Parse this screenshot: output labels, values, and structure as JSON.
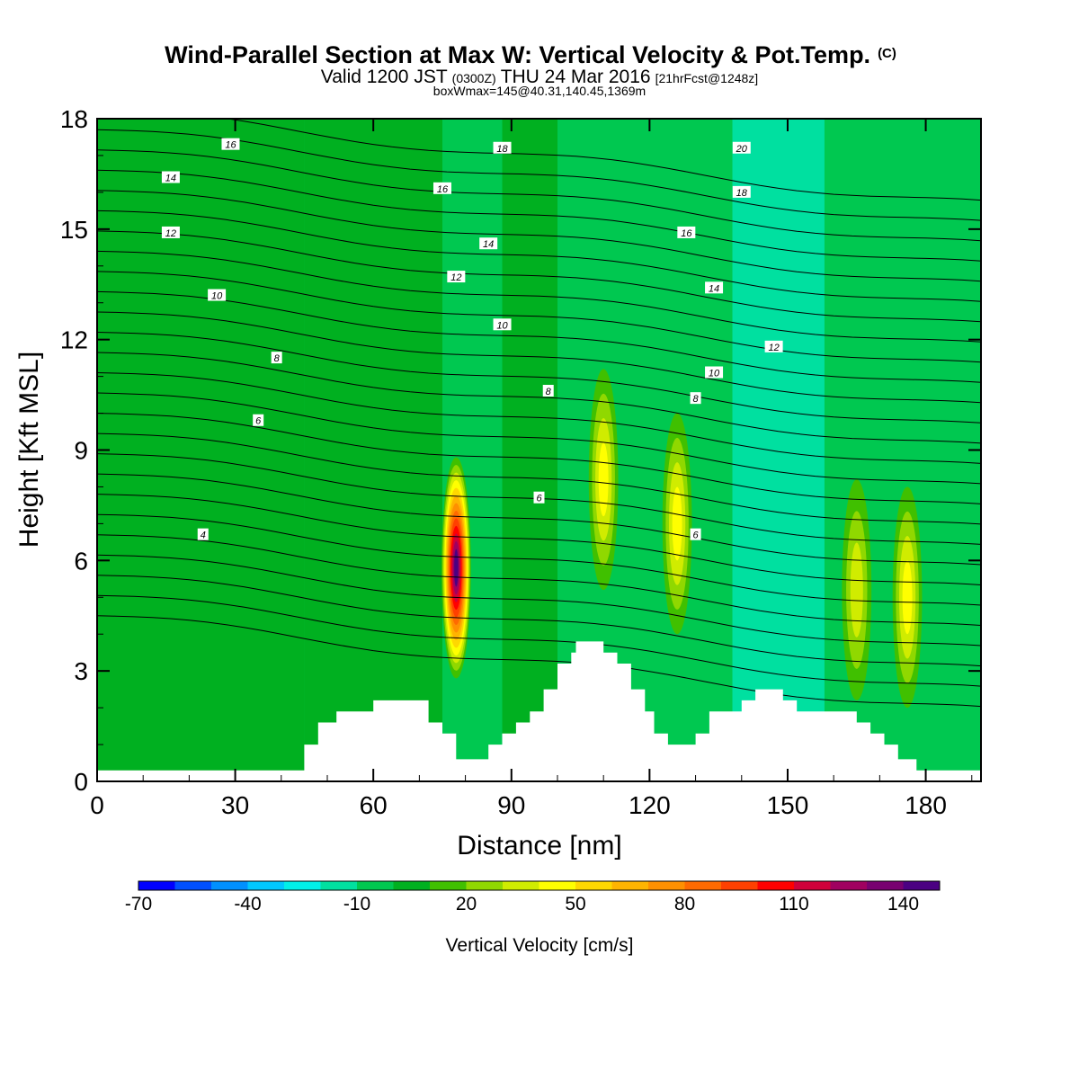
{
  "chart_data": {
    "type": "heatmap",
    "title": "Wind-Parallel Section at Max W: Vertical Velocity & Pot.Temp.",
    "title_mark": "(C)",
    "subtitle": {
      "valid": "Valid 1200 JST",
      "zulu": "(0300Z)",
      "date": "THU 24 Mar 2016",
      "fcst": "[21hrFcst@1248z]"
    },
    "note": "boxWmax=145@40.31,140.45,1369m",
    "xlabel": "Distance [nm]",
    "ylabel": "Height [Kft MSL]",
    "xlim": [
      0,
      192
    ],
    "ylim": [
      0,
      18
    ],
    "xticks": [
      "0",
      "30",
      "60",
      "90",
      "120",
      "150",
      "180"
    ],
    "yticks": [
      "0",
      "3",
      "6",
      "9",
      "12",
      "15",
      "18"
    ],
    "colorbar": {
      "label": "Vertical Velocity [cm/s]",
      "tick_labels": [
        "-70",
        "-40",
        "-10",
        "20",
        "50",
        "80",
        "110",
        "140"
      ],
      "tick_values": [
        -70,
        -40,
        -10,
        20,
        50,
        80,
        110,
        140
      ],
      "min": -70,
      "max": 150,
      "step": 10,
      "colors": [
        "#0000ff",
        "#0050ff",
        "#0090ff",
        "#00c8ff",
        "#00f0e8",
        "#00e0a0",
        "#00c850",
        "#00b020",
        "#40c000",
        "#90d800",
        "#d0ec00",
        "#ffff00",
        "#ffd800",
        "#ffb400",
        "#ff9000",
        "#ff6a00",
        "#ff4000",
        "#ff0000",
        "#d0003a",
        "#a00060",
        "#780070",
        "#4b0082"
      ]
    },
    "updrafts": [
      {
        "x": 78,
        "z": 5.8,
        "w": 145
      },
      {
        "x": 110,
        "z": 8.2,
        "w": 45
      },
      {
        "x": 126,
        "z": 7.0,
        "w": 45
      },
      {
        "x": 165,
        "z": 5.2,
        "w": 35
      },
      {
        "x": 176,
        "z": 5.0,
        "w": 45
      }
    ],
    "terrain": [
      [
        0,
        0.3
      ],
      [
        45,
        0.3
      ],
      [
        45,
        1.0
      ],
      [
        48,
        1.0
      ],
      [
        48,
        1.6
      ],
      [
        52,
        1.6
      ],
      [
        52,
        1.9
      ],
      [
        60,
        1.9
      ],
      [
        60,
        2.2
      ],
      [
        62,
        2.2
      ],
      [
        62,
        2.2
      ],
      [
        72,
        2.2
      ],
      [
        72,
        1.6
      ],
      [
        75,
        1.6
      ],
      [
        75,
        1.3
      ],
      [
        78,
        1.3
      ],
      [
        78,
        0.6
      ],
      [
        85,
        0.6
      ],
      [
        85,
        1.0
      ],
      [
        88,
        1.0
      ],
      [
        88,
        1.3
      ],
      [
        91,
        1.3
      ],
      [
        91,
        1.6
      ],
      [
        94,
        1.6
      ],
      [
        94,
        1.9
      ],
      [
        97,
        1.9
      ],
      [
        97,
        2.5
      ],
      [
        100,
        2.5
      ],
      [
        100,
        3.2
      ],
      [
        103,
        3.2
      ],
      [
        103,
        3.5
      ],
      [
        104,
        3.5
      ],
      [
        104,
        3.8
      ],
      [
        110,
        3.8
      ],
      [
        110,
        3.5
      ],
      [
        113,
        3.5
      ],
      [
        113,
        3.2
      ],
      [
        116,
        3.2
      ],
      [
        116,
        2.5
      ],
      [
        119,
        2.5
      ],
      [
        119,
        1.9
      ],
      [
        121,
        1.9
      ],
      [
        121,
        1.3
      ],
      [
        124,
        1.3
      ],
      [
        124,
        1.0
      ],
      [
        130,
        1.0
      ],
      [
        130,
        1.3
      ],
      [
        133,
        1.3
      ],
      [
        133,
        1.9
      ],
      [
        140,
        1.9
      ],
      [
        140,
        2.2
      ],
      [
        143,
        2.2
      ],
      [
        143,
        2.5
      ],
      [
        149,
        2.5
      ],
      [
        149,
        2.2
      ],
      [
        152,
        2.2
      ],
      [
        152,
        1.9
      ],
      [
        165,
        1.9
      ],
      [
        165,
        1.6
      ],
      [
        168,
        1.6
      ],
      [
        168,
        1.3
      ],
      [
        171,
        1.3
      ],
      [
        171,
        1.0
      ],
      [
        174,
        1.0
      ],
      [
        174,
        0.6
      ],
      [
        178,
        0.6
      ],
      [
        178,
        0.3
      ],
      [
        192,
        0.3
      ]
    ],
    "theta_contour_labels": [
      {
        "text": "4",
        "x": 23,
        "z": 6.7
      },
      {
        "text": "6",
        "x": 35,
        "z": 9.8
      },
      {
        "text": "8",
        "x": 39,
        "z": 11.5
      },
      {
        "text": "10",
        "x": 26,
        "z": 13.2
      },
      {
        "text": "12",
        "x": 16,
        "z": 14.9
      },
      {
        "text": "14",
        "x": 16,
        "z": 16.4
      },
      {
        "text": "16",
        "x": 29,
        "z": 17.3
      },
      {
        "text": "6",
        "x": 96,
        "z": 7.7
      },
      {
        "text": "8",
        "x": 98,
        "z": 10.6
      },
      {
        "text": "10",
        "x": 88,
        "z": 12.4
      },
      {
        "text": "12",
        "x": 78,
        "z": 13.7
      },
      {
        "text": "14",
        "x": 85,
        "z": 14.6
      },
      {
        "text": "16",
        "x": 75,
        "z": 16.1
      },
      {
        "text": "18",
        "x": 88,
        "z": 17.2
      },
      {
        "text": "6",
        "x": 130,
        "z": 6.7
      },
      {
        "text": "8",
        "x": 130,
        "z": 10.4
      },
      {
        "text": "10",
        "x": 134,
        "z": 11.1
      },
      {
        "text": "12",
        "x": 147,
        "z": 11.8
      },
      {
        "text": "14",
        "x": 134,
        "z": 13.4
      },
      {
        "text": "16",
        "x": 128,
        "z": 14.9
      },
      {
        "text": "18",
        "x": 140,
        "z": 16.0
      },
      {
        "text": "20",
        "x": 140,
        "z": 17.2
      }
    ]
  }
}
